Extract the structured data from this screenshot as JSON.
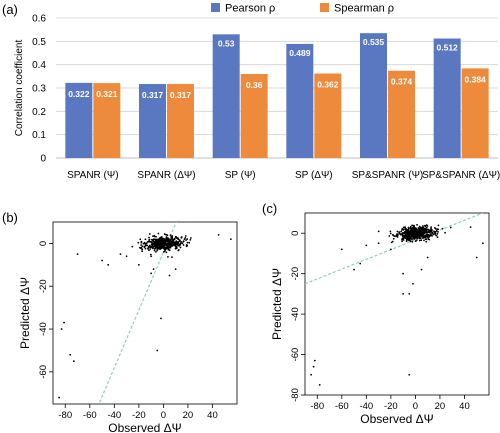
{
  "panels": {
    "a": "(a)",
    "b": "(b)",
    "c": "(c)"
  },
  "colors": {
    "pearson": "#5A77C2",
    "spearman": "#EE8A3B",
    "fit": "#8CCFC6"
  },
  "chart_data": [
    {
      "type": "bar",
      "panel": "(a)",
      "ylabel": "Correlation coefficient",
      "ylim": [
        0,
        0.6
      ],
      "yticks": [
        "0",
        "0.1",
        "0.2",
        "0.3",
        "0.4",
        "0.5",
        "0.6"
      ],
      "categories": [
        "SPANR (Ψ)",
        "SPANR (ΔΨ)",
        "SP (Ψ)",
        "SP (ΔΨ)",
        "SP&SPANR (Ψ)",
        "SP&SPANR (ΔΨ)"
      ],
      "legend_position": "top-right",
      "series": [
        {
          "name": "Pearson ρ",
          "values": [
            0.322,
            0.317,
            0.53,
            0.489,
            0.535,
            0.512
          ],
          "labels": [
            "0.322",
            "0.317",
            "0.53",
            "0.489",
            "0.535",
            "0.512"
          ]
        },
        {
          "name": "Spearman ρ",
          "values": [
            0.321,
            0.317,
            0.36,
            0.362,
            0.374,
            0.384
          ],
          "labels": [
            "0.321",
            "0.317",
            "0.36",
            "0.362",
            "0.374",
            "0.384"
          ]
        }
      ]
    },
    {
      "type": "scatter",
      "panel": "(b)",
      "xlabel": "Observed ΔΨ",
      "ylabel": "Predicted ΔΨ",
      "xlim": [
        -90,
        60
      ],
      "ylim": [
        -75,
        10
      ],
      "xticks": [
        -80,
        -60,
        -40,
        -20,
        0,
        20,
        40
      ],
      "yticks": [
        0,
        -20,
        -40,
        -60
      ],
      "fit_line": [
        [
          -60,
          -85
        ],
        [
          12,
          12
        ]
      ],
      "outliers": [
        [
          -85,
          -72
        ],
        [
          -83,
          -40
        ],
        [
          -81,
          -37
        ],
        [
          -76,
          -52
        ],
        [
          -73,
          -55
        ],
        [
          -5,
          -50
        ],
        [
          -2,
          -35
        ],
        [
          -8,
          -12
        ],
        [
          -10,
          -14
        ],
        [
          -45,
          -10
        ],
        [
          -50,
          -8
        ],
        [
          -70,
          -5
        ],
        [
          -35,
          -5
        ],
        [
          -30,
          -6
        ],
        [
          -20,
          -10
        ],
        [
          -10,
          -6
        ],
        [
          10,
          -12
        ],
        [
          5,
          -15
        ],
        [
          55,
          2
        ],
        [
          45,
          4
        ]
      ]
    },
    {
      "type": "scatter",
      "panel": "(c)",
      "xlabel": "Observed ΔΨ",
      "ylabel": "Predicted ΔΨ",
      "xlim": [
        -90,
        60
      ],
      "ylim": [
        -80,
        10
      ],
      "xticks": [
        -80,
        -60,
        -40,
        -20,
        0,
        20,
        40
      ],
      "yticks": [
        0,
        -20,
        -40,
        -60,
        -80
      ],
      "fit_line": [
        [
          -90,
          -25
        ],
        [
          55,
          10
        ]
      ],
      "outliers": [
        [
          -85,
          -70
        ],
        [
          -83,
          -66
        ],
        [
          -82,
          -63
        ],
        [
          -78,
          -75
        ],
        [
          -5,
          -70
        ],
        [
          -10,
          -30
        ],
        [
          -5,
          -30
        ],
        [
          -2,
          -25
        ],
        [
          -10,
          -20
        ],
        [
          -50,
          -18
        ],
        [
          -45,
          -15
        ],
        [
          -60,
          -8
        ],
        [
          -40,
          -6
        ],
        [
          -30,
          -5
        ],
        [
          -20,
          -8
        ],
        [
          10,
          -12
        ],
        [
          5,
          -18
        ],
        [
          50,
          -12
        ],
        [
          55,
          -5
        ],
        [
          45,
          3
        ]
      ]
    }
  ]
}
